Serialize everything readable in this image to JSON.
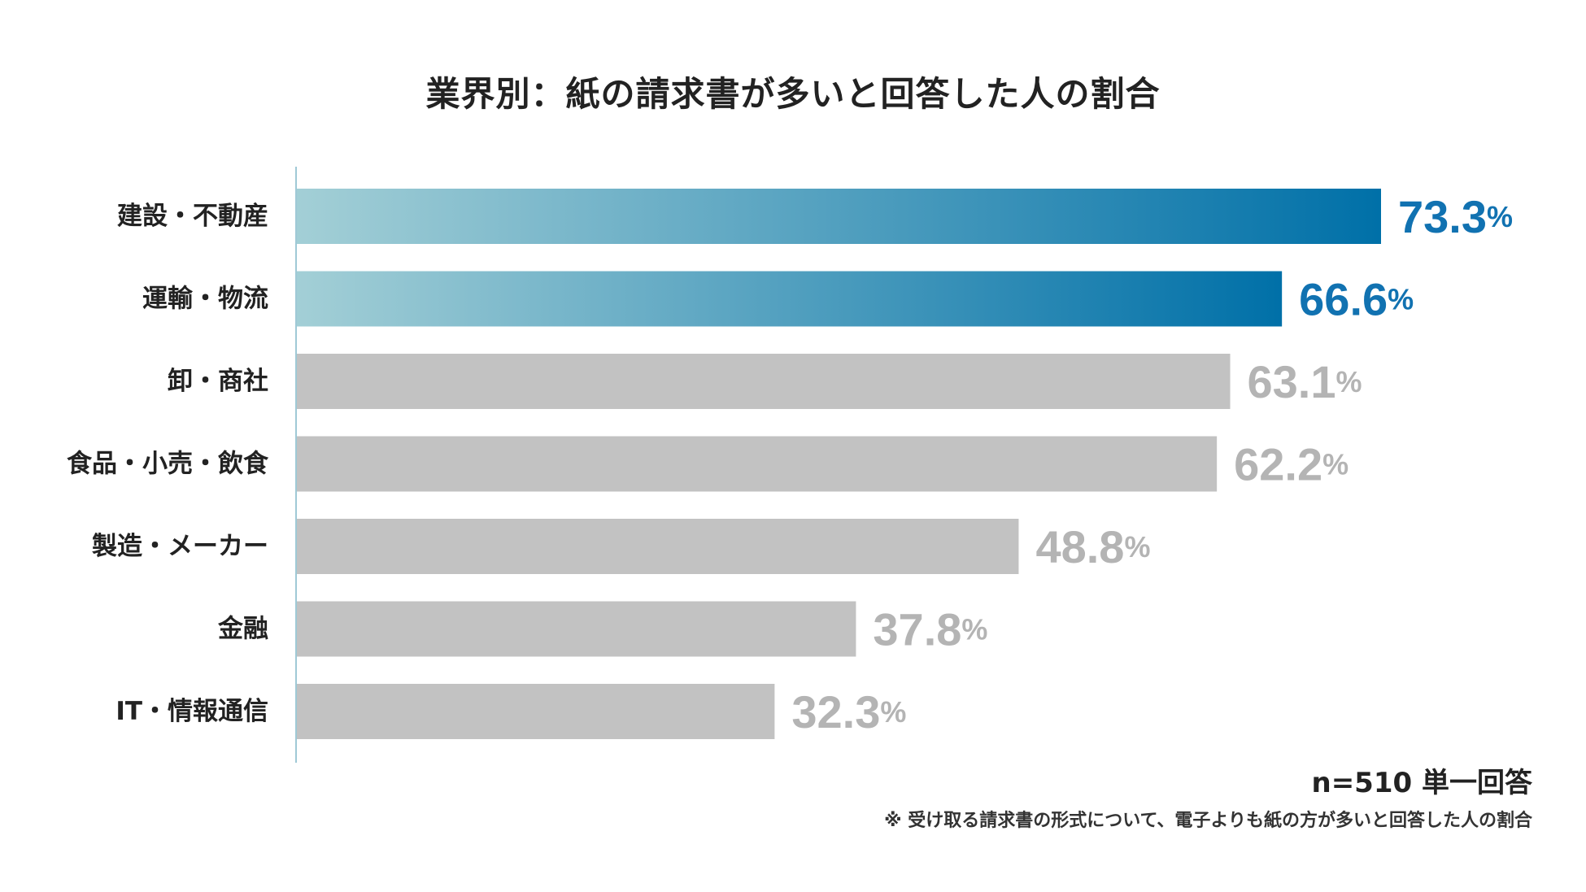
{
  "chart_data": {
    "type": "bar",
    "orientation": "horizontal",
    "title": "業界別：紙の請求書が多いと回答した人の割合",
    "categories": [
      "建設・不動産",
      "運輸・物流",
      "卸・商社",
      "食品・小売・飲食",
      "製造・メーカー",
      "金融",
      "IT・情報通信"
    ],
    "values": [
      73.3,
      66.6,
      63.1,
      62.2,
      48.8,
      37.8,
      32.3
    ],
    "unit": "%",
    "highlighted": [
      true,
      true,
      false,
      false,
      false,
      false,
      false
    ],
    "xlim": [
      0,
      100
    ],
    "xlabel": "",
    "ylabel": "",
    "grid": false,
    "colors": {
      "highlight_start": "#a3cfd6",
      "highlight_end": "#0070a8",
      "highlight_label": "#1172b1",
      "default_bar": "#c2c2c2",
      "default_label": "#b4b4b4",
      "axis_line": "#9fc9d6",
      "category_label": "#222222"
    }
  },
  "footnote": {
    "n": "n=510 単一回答",
    "note": "※ 受け取る請求書の形式について、電子よりも紙の方が多いと回答した人の割合"
  }
}
